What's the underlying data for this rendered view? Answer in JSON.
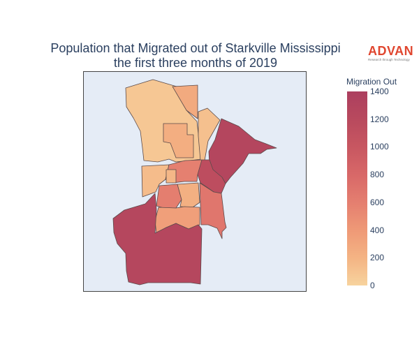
{
  "title": {
    "line1": "Population that Migrated out of Starkville Mississippi",
    "line2": "the first three months of 2019"
  },
  "logo": {
    "name": "ADVAN",
    "tagline": "Research through Technology"
  },
  "legend": {
    "title": "Migration Out",
    "min": 0,
    "max": 1400,
    "ticks": [
      "0",
      "200",
      "400",
      "600",
      "800",
      "1000",
      "1200",
      "1400"
    ],
    "colorscale": [
      "#f7d39e",
      "#f4b484",
      "#ef9a77",
      "#e58070",
      "#d86868",
      "#c85761",
      "#b94a5e",
      "#ac3f5f"
    ]
  },
  "regions": [
    {
      "id": "north-west",
      "value": 80
    },
    {
      "id": "north-strip",
      "value": 280
    },
    {
      "id": "north-center-block",
      "value": 250
    },
    {
      "id": "north-east-tan",
      "value": 120
    },
    {
      "id": "east-large",
      "value": 1270
    },
    {
      "id": "center-left",
      "value": 150
    },
    {
      "id": "center-band",
      "value": 600
    },
    {
      "id": "center-small",
      "value": 180
    },
    {
      "id": "center-east",
      "value": 1150
    },
    {
      "id": "center-mid",
      "value": 620
    },
    {
      "id": "center-inner",
      "value": 230
    },
    {
      "id": "south-east",
      "value": 680
    },
    {
      "id": "south-mid",
      "value": 360
    },
    {
      "id": "south-large",
      "value": 1260
    }
  ]
}
